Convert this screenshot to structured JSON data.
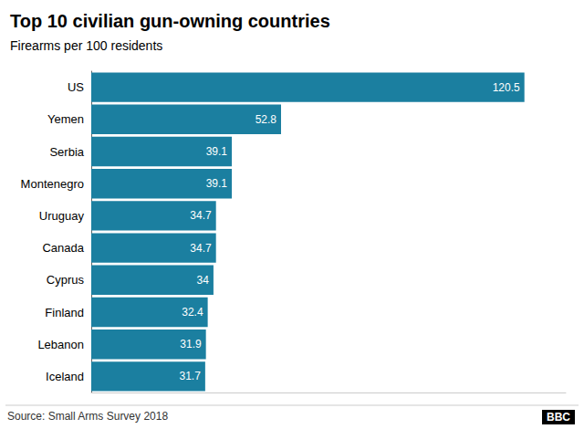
{
  "chart_data": {
    "type": "bar",
    "orientation": "horizontal",
    "title": "Top 10 civilian gun-owning countries",
    "subtitle": "Firearms per 100 residents",
    "annotations": [
      "Source: Small Arms Survey 2018",
      "BBC"
    ],
    "categories": [
      "US",
      "Yemen",
      "Serbia",
      "Montenegro",
      "Uruguay",
      "Canada",
      "Cyprus",
      "Finland",
      "Lebanon",
      "Iceland"
    ],
    "values": [
      120.5,
      52.8,
      39.1,
      39.1,
      34.7,
      34.7,
      34,
      32.4,
      31.9,
      31.7
    ],
    "color": "#1b7fa0",
    "xlim": [
      0,
      132
    ],
    "grid": false,
    "data_labels": true,
    "tick_labels": "y"
  }
}
